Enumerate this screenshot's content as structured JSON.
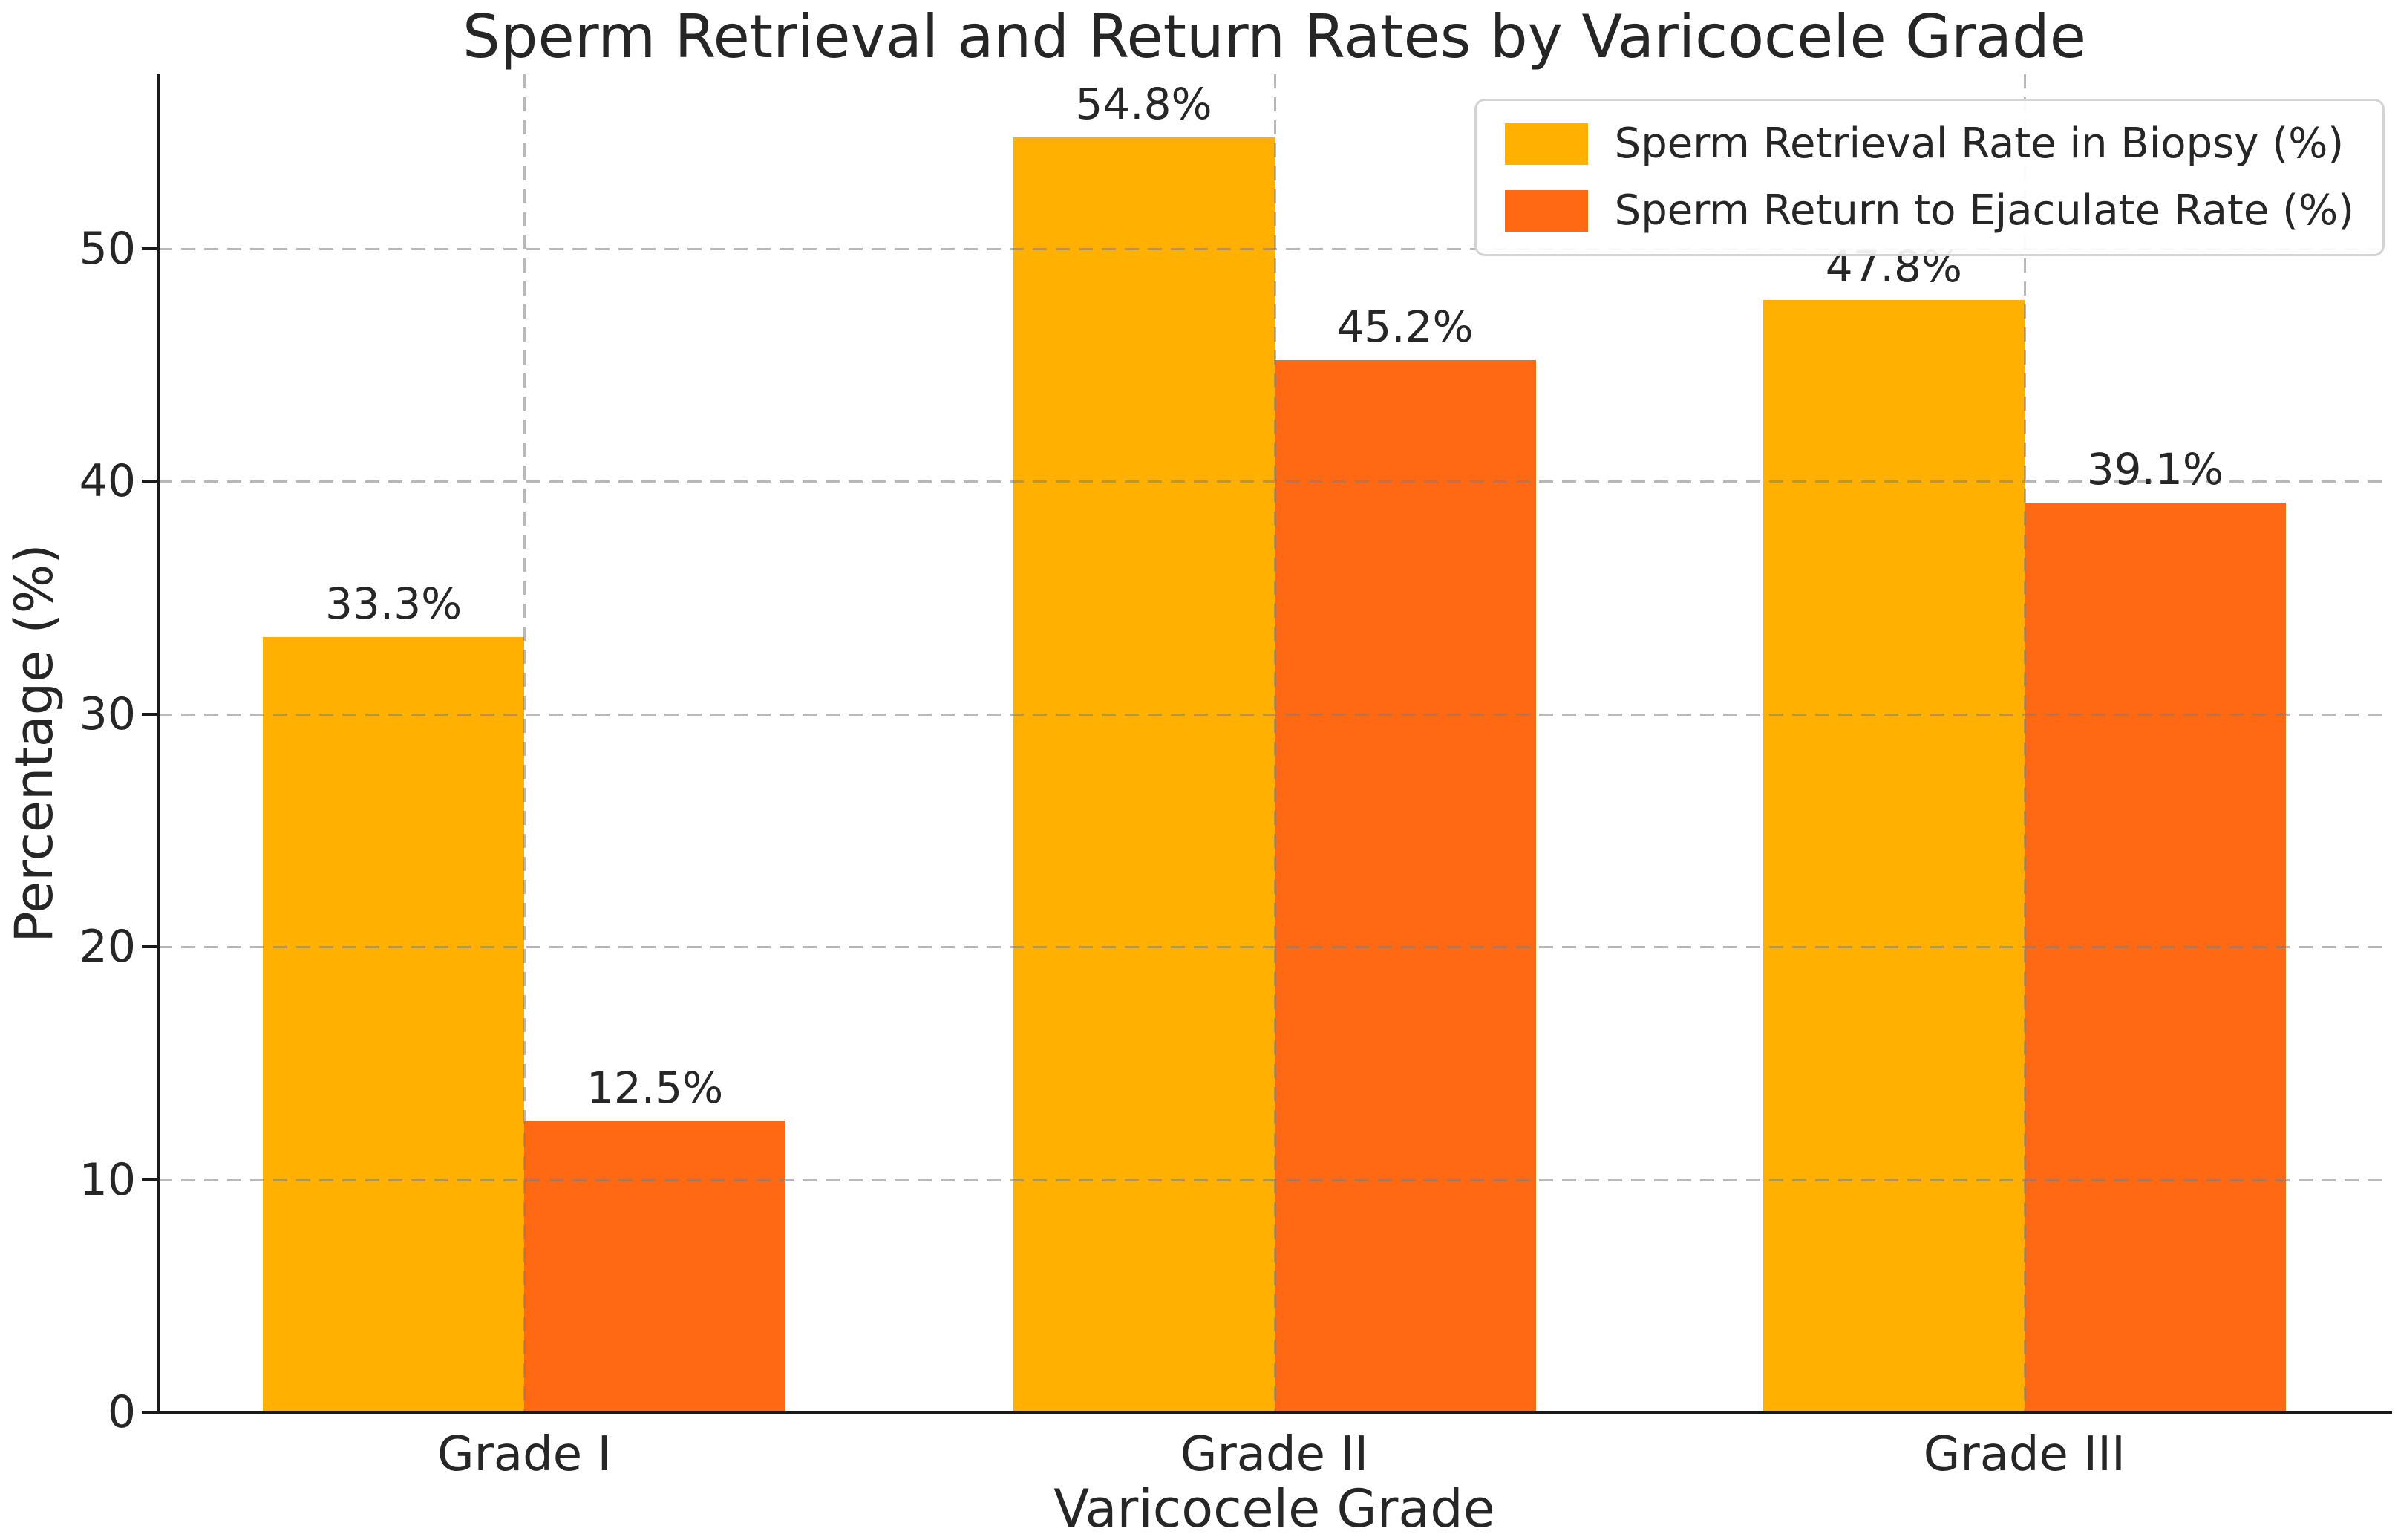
{
  "chart_data": {
    "type": "bar",
    "title": "Sperm Retrieval and Return Rates by Varicocele Grade",
    "xlabel": "Varicocele Grade",
    "ylabel": "Percentage (%)",
    "categories": [
      "Grade I",
      "Grade II",
      "Grade III"
    ],
    "series": [
      {
        "name": "Sperm Retrieval Rate in Biopsy (%)",
        "color": "#FFB000",
        "values": [
          33.3,
          54.8,
          47.8
        ],
        "value_labels": [
          "33.3%",
          "54.8%",
          "47.8%"
        ]
      },
      {
        "name": "Sperm Return to Ejaculate Rate (%)",
        "color": "#FF6914",
        "values": [
          12.5,
          45.2,
          39.1
        ],
        "value_labels": [
          "12.5%",
          "45.2%",
          "39.1%"
        ]
      }
    ],
    "ylim": [
      0,
      57.5
    ],
    "yticks": [
      0,
      10,
      20,
      30,
      40,
      50
    ],
    "bar_width": 0.35,
    "grid": {
      "style": "dashed",
      "axes": "both",
      "drawn_over_bars": true
    },
    "legend_position": "upper right"
  },
  "style": {
    "series_colors": [
      "#FFB000",
      "#FF6914"
    ],
    "grid_color": "#7d7d7d",
    "spine_color": "#1a1a1a",
    "text_color": "#262626",
    "background": "#ffffff"
  }
}
